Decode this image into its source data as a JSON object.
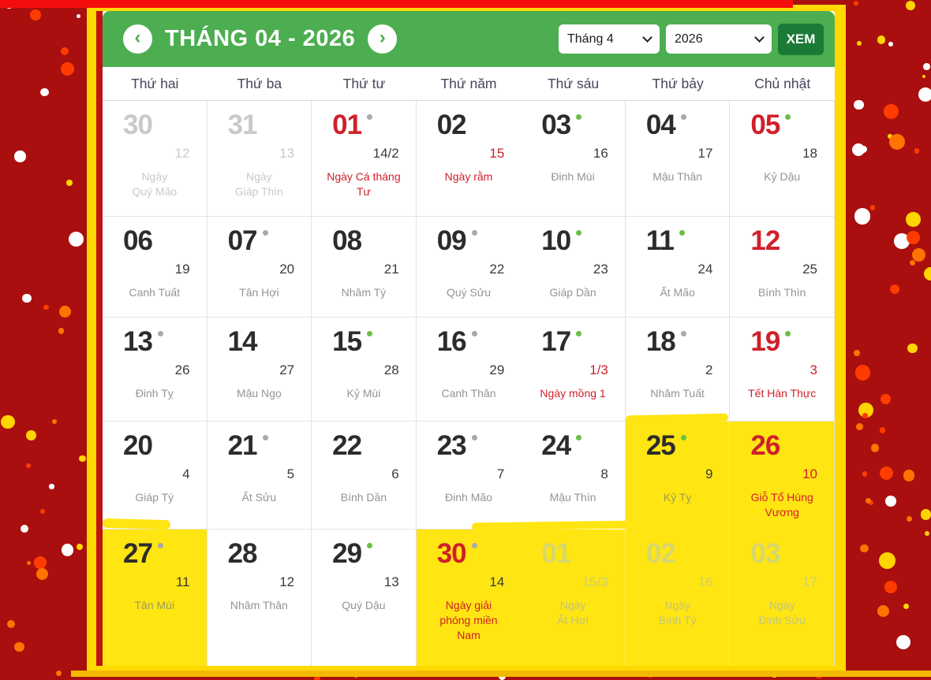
{
  "header": {
    "title": "THÁNG 04 - 2026",
    "prev_icon": "‹",
    "next_icon": "›",
    "month_select": "Tháng 4",
    "year_select": "2026",
    "view_button": "XEM"
  },
  "weekdays": [
    "Thứ hai",
    "Thứ ba",
    "Thứ tư",
    "Thứ năm",
    "Thứ sáu",
    "Thứ bảy",
    "Chủ nhật"
  ],
  "days": [
    {
      "solar": "30",
      "lunar": "12",
      "label": "Ngày\nQuý Mão",
      "dot": "",
      "other": true
    },
    {
      "solar": "31",
      "lunar": "13",
      "label": "Ngày\nGiáp Thìn",
      "dot": "",
      "other": true
    },
    {
      "solar": "01",
      "lunar": "14/2",
      "label": "Ngày Cá tháng\nTư",
      "dot": "gray",
      "solar_red": true,
      "label_red": true
    },
    {
      "solar": "02",
      "lunar": "15",
      "label": "Ngày rằm",
      "dot": "",
      "lunar_red": true,
      "label_red": true
    },
    {
      "solar": "03",
      "lunar": "16",
      "label": "Đinh Mùi",
      "dot": "green"
    },
    {
      "solar": "04",
      "lunar": "17",
      "label": "Mậu Thân",
      "dot": "gray"
    },
    {
      "solar": "05",
      "lunar": "18",
      "label": "Kỷ Dậu",
      "dot": "green",
      "solar_red": true
    },
    {
      "solar": "06",
      "lunar": "19",
      "label": "Canh Tuất",
      "dot": ""
    },
    {
      "solar": "07",
      "lunar": "20",
      "label": "Tân Hợi",
      "dot": "gray"
    },
    {
      "solar": "08",
      "lunar": "21",
      "label": "Nhâm Tý",
      "dot": ""
    },
    {
      "solar": "09",
      "lunar": "22",
      "label": "Quý Sửu",
      "dot": "gray"
    },
    {
      "solar": "10",
      "lunar": "23",
      "label": "Giáp Dần",
      "dot": "green"
    },
    {
      "solar": "11",
      "lunar": "24",
      "label": "Ất Mão",
      "dot": "green"
    },
    {
      "solar": "12",
      "lunar": "25",
      "label": "Bính Thìn",
      "dot": "",
      "solar_red": true
    },
    {
      "solar": "13",
      "lunar": "26",
      "label": "Đinh Tỵ",
      "dot": "gray"
    },
    {
      "solar": "14",
      "lunar": "27",
      "label": "Mậu Ngọ",
      "dot": ""
    },
    {
      "solar": "15",
      "lunar": "28",
      "label": "Kỷ Mùi",
      "dot": "green"
    },
    {
      "solar": "16",
      "lunar": "29",
      "label": "Canh Thân",
      "dot": "gray"
    },
    {
      "solar": "17",
      "lunar": "1/3",
      "label": "Ngày mồng 1",
      "dot": "green",
      "lunar_red": true,
      "label_red": true
    },
    {
      "solar": "18",
      "lunar": "2",
      "label": "Nhâm Tuất",
      "dot": "gray"
    },
    {
      "solar": "19",
      "lunar": "3",
      "label": "Tết Hàn Thực",
      "dot": "green",
      "solar_red": true,
      "lunar_red": true,
      "label_red": true
    },
    {
      "solar": "20",
      "lunar": "4",
      "label": "Giáp Tý",
      "dot": ""
    },
    {
      "solar": "21",
      "lunar": "5",
      "label": "Ất Sửu",
      "dot": "gray"
    },
    {
      "solar": "22",
      "lunar": "6",
      "label": "Bính Dần",
      "dot": ""
    },
    {
      "solar": "23",
      "lunar": "7",
      "label": "Đinh Mão",
      "dot": "gray"
    },
    {
      "solar": "24",
      "lunar": "8",
      "label": "Mậu Thìn",
      "dot": "green"
    },
    {
      "solar": "25",
      "lunar": "9",
      "label": "Kỷ Tỵ",
      "dot": "green",
      "highlight": true
    },
    {
      "solar": "26",
      "lunar": "10",
      "label": "Giỗ Tổ Hùng\nVương",
      "dot": "",
      "solar_red": true,
      "lunar_red": true,
      "label_red": true,
      "highlight": true
    },
    {
      "solar": "27",
      "lunar": "11",
      "label": "Tân Mùi",
      "dot": "gray",
      "highlight": true
    },
    {
      "solar": "28",
      "lunar": "12",
      "label": "Nhâm Thân",
      "dot": ""
    },
    {
      "solar": "29",
      "lunar": "13",
      "label": "Quý Dậu",
      "dot": "green"
    },
    {
      "solar": "30",
      "lunar": "14",
      "label": "Ngày giải\nphóng miền\nNam",
      "dot": "gray",
      "solar_red": true,
      "label_red": true,
      "highlight": true
    },
    {
      "solar": "01",
      "lunar": "15/3",
      "label": "Ngày\nẤt Hợi",
      "dot": "",
      "other": true,
      "highlight": true
    },
    {
      "solar": "02",
      "lunar": "16",
      "label": "Ngày\nBính Tý",
      "dot": "",
      "other": true,
      "highlight": true
    },
    {
      "solar": "03",
      "lunar": "17",
      "label": "Ngày\nĐinh Sửu",
      "dot": "",
      "other": true,
      "solar_red": true,
      "highlight": true
    }
  ],
  "colors": {
    "page_red": "#a90f0f",
    "strip_red": "#f50d0d",
    "frame_yellow": "#ffd900",
    "header_green": "#4cae50",
    "button_green": "#1a7a36",
    "highlight_yellow": "#ffe512",
    "holiday_red": "#d0202a",
    "dot_green": "#6cbf45",
    "dot_gray": "#a9a9a9",
    "gold_band": "#f3ba00",
    "confetti": [
      "#ff7300",
      "#ff3c00",
      "#ffffff",
      "#ffd500"
    ]
  }
}
